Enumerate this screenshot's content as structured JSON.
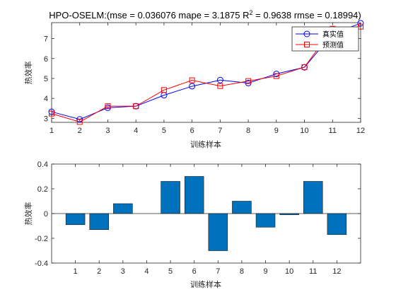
{
  "chart_data": [
    {
      "type": "line",
      "title": "HPO-OSELM:(mse = 0.036076 mape = 3.1875  R",
      "title_sup": "2",
      "title_tail": " = 0.9638 rmse = 0.18994)",
      "xlabel": "训练样本",
      "ylabel": "热效率",
      "xlim": [
        1,
        12
      ],
      "ylim": [
        2.8,
        7.8
      ],
      "xticks": [
        1,
        2,
        3,
        4,
        5,
        6,
        7,
        8,
        9,
        10,
        11,
        12
      ],
      "yticks": [
        3,
        4,
        5,
        6,
        7
      ],
      "grid": false,
      "legend_position": "top-right",
      "x": [
        1,
        2,
        3,
        4,
        5,
        6,
        7,
        8,
        9,
        10,
        11,
        12
      ],
      "series": [
        {
          "name": "真实值",
          "marker": "circle",
          "color": "#0000FF",
          "values": [
            3.33,
            2.95,
            3.53,
            3.61,
            4.16,
            4.61,
            4.92,
            4.77,
            5.23,
            5.56,
            7.23,
            7.77
          ]
        },
        {
          "name": "预测值",
          "marker": "square",
          "color": "#FF0000",
          "values": [
            3.24,
            2.82,
            3.61,
            3.61,
            4.42,
            4.91,
            4.62,
            4.87,
            5.12,
            5.57,
            7.49,
            7.6
          ]
        }
      ]
    },
    {
      "type": "bar",
      "xlabel": "训练样本",
      "ylabel": "热效率",
      "xlim": [
        0,
        13
      ],
      "ylim": [
        -0.4,
        0.4
      ],
      "yticks": [
        -0.4,
        -0.2,
        0,
        0.2,
        0.4
      ],
      "categories": [
        "1",
        "2",
        "3",
        "4",
        "5",
        "6",
        "7",
        "8",
        "9",
        "10",
        "11",
        "12"
      ],
      "values": [
        -0.09,
        -0.13,
        0.08,
        0.0,
        0.26,
        0.3,
        -0.3,
        0.1,
        -0.11,
        -0.01,
        0.26,
        -0.17
      ],
      "bar_color": "#0072BD",
      "grid": false
    }
  ]
}
